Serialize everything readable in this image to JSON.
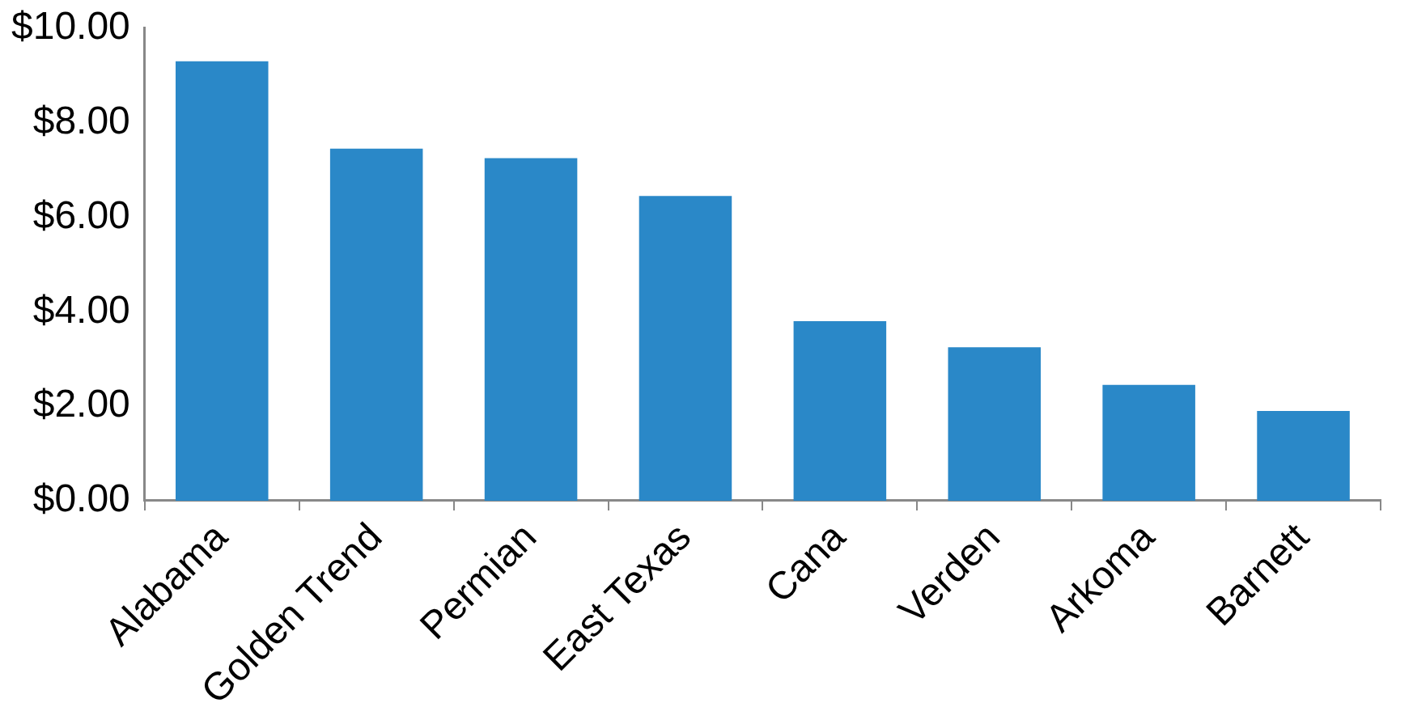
{
  "chart_data": {
    "type": "bar",
    "categories": [
      "Alabama",
      "Golden Trend",
      "Permian",
      "East Texas",
      "Cana",
      "Verden",
      "Arkoma",
      "Barnett"
    ],
    "values": [
      9.3,
      7.45,
      7.25,
      6.45,
      3.8,
      3.25,
      2.45,
      1.9
    ],
    "color": "#2a88c8",
    "ylim": [
      0,
      10
    ],
    "yticks": [
      {
        "value": 0,
        "label": "$0.00"
      },
      {
        "value": 2,
        "label": "$2.00"
      },
      {
        "value": 4,
        "label": "$4.00"
      },
      {
        "value": 6,
        "label": "$6.00"
      },
      {
        "value": 8,
        "label": "$8.00"
      },
      {
        "value": 10,
        "label": "$10.00"
      }
    ],
    "grid": false,
    "legend": false
  }
}
